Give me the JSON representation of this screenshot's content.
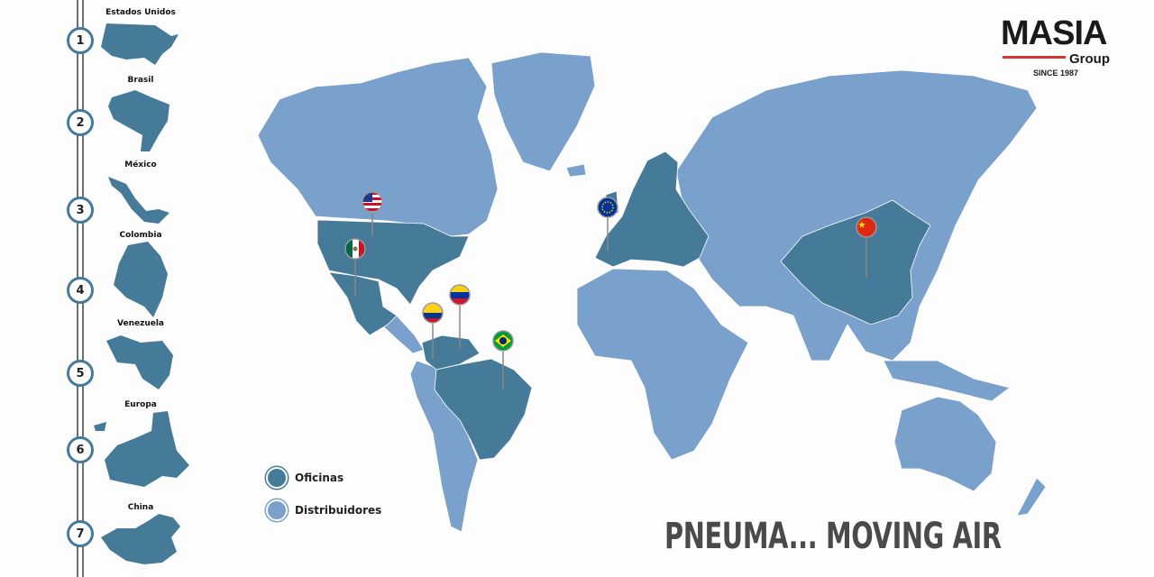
{
  "colors": {
    "offices": "#457a98",
    "distributors": "#7aa0cc",
    "accent": "#d9352c"
  },
  "sidebar": {
    "items": [
      {
        "number": "1",
        "label": "Estados Unidos"
      },
      {
        "number": "2",
        "label": "Brasil"
      },
      {
        "number": "3",
        "label": "México"
      },
      {
        "number": "4",
        "label": "Colombia"
      },
      {
        "number": "5",
        "label": "Venezuela"
      },
      {
        "number": "6",
        "label": "Europa"
      },
      {
        "number": "7",
        "label": "China"
      }
    ]
  },
  "logo": {
    "main": "MASIA",
    "sub": "Group",
    "since": "SINCE 1987"
  },
  "legend": {
    "offices": "Oficinas",
    "distributors": "Distribuidores"
  },
  "map": {
    "office_regions": [
      "Estados Unidos",
      "México",
      "Colombia",
      "Venezuela",
      "Brasil",
      "Europa",
      "China"
    ],
    "pins": [
      "usa-flag",
      "mexico-flag",
      "venezuela-flag",
      "colombia-flag",
      "brazil-flag",
      "eu-flag",
      "china-flag"
    ]
  },
  "slogan": "PNEUMA... MOVING AIR"
}
